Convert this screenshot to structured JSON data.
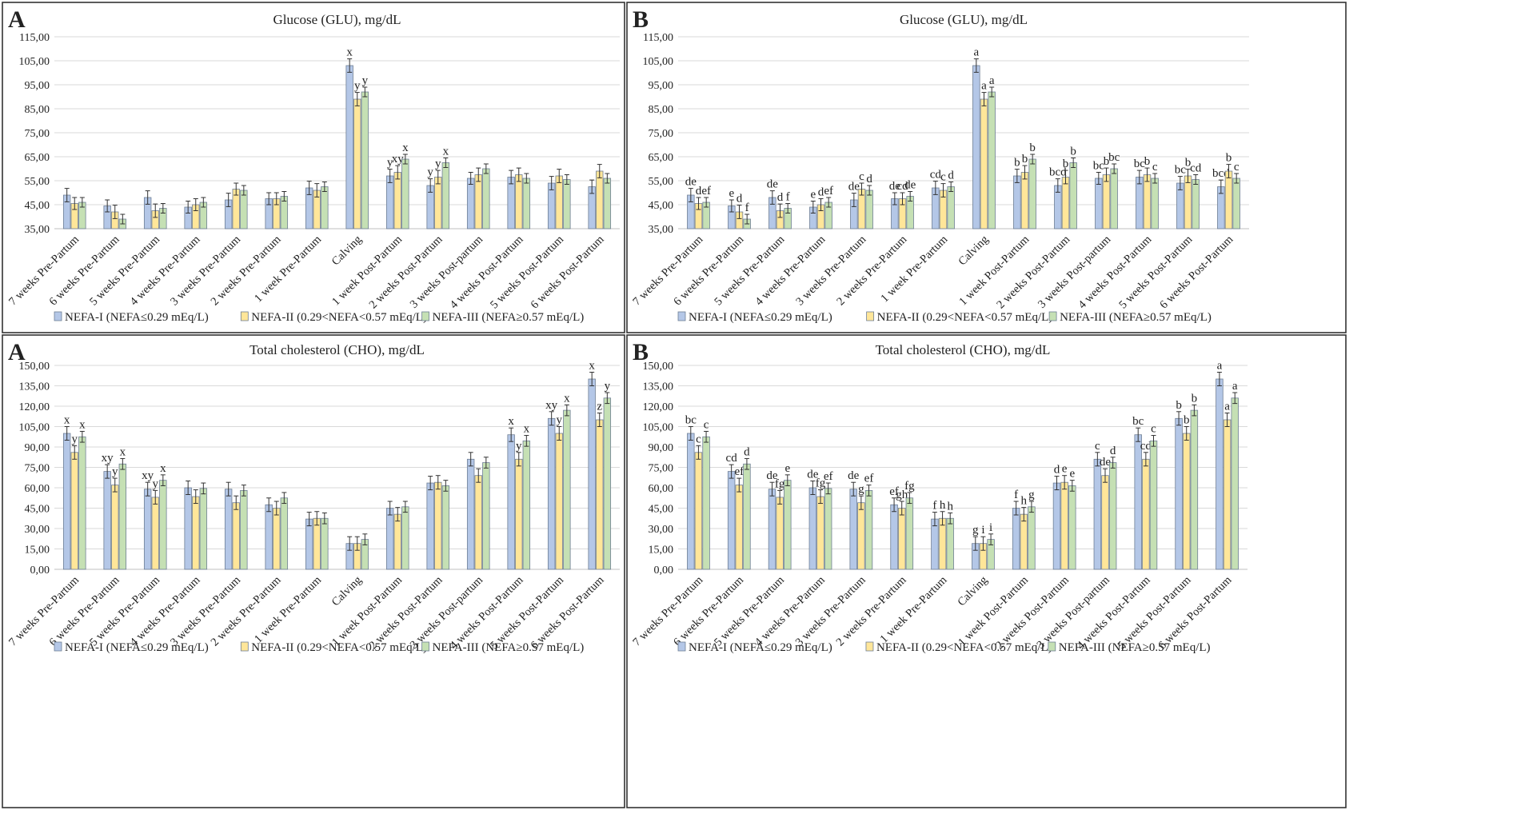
{
  "chart_data": [
    {
      "type": "bar",
      "panel_letter": "A",
      "title": "Glucose (GLU), mg/dL",
      "ylim": [
        35,
        115
      ],
      "yticks": [
        "35,00",
        "45,00",
        "55,00",
        "65,00",
        "75,00",
        "85,00",
        "95,00",
        "105,00",
        "115,00"
      ],
      "categories": [
        "7 weeks Pre-Partum",
        "6 weeks Pre-Partum",
        "5 weeks Pre-Partum",
        "4 weeks Pre-Partum",
        "3 weeks Pre-Partum",
        "2 weeks Pre-Partum",
        "1 week Pre-Partum",
        "Calving",
        "1 week Post-Partum",
        "2 weeks Post-Partum",
        "3 weeks Post-partum",
        "4 weeks Post-Partum",
        "5 weeks Post-Partum",
        "6 weeks Post-Partum"
      ],
      "series": [
        {
          "name": "NEFA-I (NEFA≤0.29 mEq/L)",
          "color": "#b4c7e7",
          "values": [
            49,
            44.5,
            48,
            44,
            47,
            47.5,
            52,
            103,
            57,
            53,
            56,
            56.5,
            54,
            52.5
          ],
          "errors": [
            2.8,
            2.5,
            2.8,
            2.5,
            2.8,
            2.5,
            2.8,
            2.8,
            2.8,
            2.8,
            2.5,
            2.8,
            2.8,
            2.8
          ],
          "labels": [
            "",
            "",
            "",
            "",
            "",
            "",
            "",
            "x",
            "y",
            "y",
            "",
            "",
            "",
            ""
          ]
        },
        {
          "name": "NEFA-II (0.29<NEFA<0.57 mEq/L)",
          "color": "#ffe699",
          "values": [
            45.5,
            42,
            42.5,
            45,
            51.5,
            47.5,
            51,
            89,
            58.5,
            56.5,
            57.5,
            57.5,
            57,
            59
          ],
          "errors": [
            2.5,
            2.8,
            2.8,
            2.5,
            2.5,
            2.5,
            2.8,
            2.8,
            2.8,
            2.8,
            2.8,
            2.8,
            2.8,
            2.8
          ],
          "labels": [
            "",
            "",
            "",
            "",
            "",
            "",
            "",
            "y",
            "xy",
            "y",
            "",
            "",
            "",
            ""
          ]
        },
        {
          "name": "NEFA-III (NEFA≥0.57 mEq/L)",
          "color": "#c5e0b4",
          "values": [
            46,
            39,
            43.5,
            46,
            51,
            48.5,
            52.5,
            92,
            64,
            62.5,
            60,
            56,
            55.5,
            56
          ],
          "errors": [
            2,
            2,
            2,
            2,
            2,
            2,
            2,
            2,
            2,
            2,
            2,
            2,
            2,
            2
          ],
          "labels": [
            "",
            "",
            "",
            "",
            "",
            "",
            "",
            "y",
            "x",
            "x",
            "",
            "",
            "",
            ""
          ]
        }
      ]
    },
    {
      "type": "bar",
      "panel_letter": "B",
      "title": "Glucose (GLU), mg/dL",
      "ylim": [
        35,
        115
      ],
      "yticks": [
        "35,00",
        "45,00",
        "55,00",
        "65,00",
        "75,00",
        "85,00",
        "95,00",
        "105,00",
        "115,00"
      ],
      "categories": [
        "7 weeks Pre-Partum",
        "6 weeks Pre-Partum",
        "5 weeks Pre-Partum",
        "4 weeks Pre-Partum",
        "3 weeks Pre-Partum",
        "2 weeks Pre-Partum",
        "1 week Pre-Partum",
        "Calving",
        "1 week Post-Partum",
        "2 weeks Post-Partum",
        "3 weeks Post-partum",
        "4 weeks Post-Partum",
        "5 weeks Post-Partum",
        "6 weeks Post-Partum"
      ],
      "series": [
        {
          "name": "NEFA-I (NEFA≤0.29 mEq/L)",
          "color": "#b4c7e7",
          "values": [
            49,
            44.5,
            48,
            44,
            47,
            47.5,
            52,
            103,
            57,
            53,
            56,
            56.5,
            54,
            52.5
          ],
          "errors": [
            2.8,
            2.5,
            2.8,
            2.5,
            2.8,
            2.5,
            2.8,
            2.8,
            2.8,
            2.8,
            2.5,
            2.8,
            2.8,
            2.8
          ],
          "labels": [
            "de",
            "e",
            "de",
            "e",
            "de",
            "de",
            "cd",
            "a",
            "b",
            "bcd",
            "bc",
            "bc",
            "bc",
            "bcd"
          ]
        },
        {
          "name": "NEFA-II (0.29<NEFA<0.57 mEq/L)",
          "color": "#ffe699",
          "values": [
            45.5,
            42,
            42.5,
            45,
            51.5,
            47.5,
            51,
            89,
            58.5,
            56.5,
            57.5,
            57.5,
            57,
            59
          ],
          "errors": [
            2.5,
            2.8,
            2.8,
            2.5,
            2.5,
            2.5,
            2.8,
            2.8,
            2.8,
            2.8,
            2.8,
            2.8,
            2.8,
            2.8
          ],
          "labels": [
            "d",
            "d",
            "d",
            "d",
            "c",
            "cd",
            "c",
            "a",
            "b",
            "b",
            "b",
            "b",
            "b",
            "b"
          ]
        },
        {
          "name": "NEFA-III (NEFA≥0.57 mEq/L)",
          "color": "#c5e0b4",
          "values": [
            46,
            39,
            43.5,
            46,
            51,
            48.5,
            52.5,
            92,
            64,
            62.5,
            60,
            56,
            55.5,
            56
          ],
          "errors": [
            2,
            2,
            2,
            2,
            2,
            2,
            2,
            2,
            2,
            2,
            2,
            2,
            2,
            2
          ],
          "labels": [
            "ef",
            "f",
            "f",
            "ef",
            "d",
            "de",
            "d",
            "a",
            "b",
            "b",
            "bc",
            "c",
            "cd",
            "c"
          ]
        }
      ]
    },
    {
      "type": "bar",
      "panel_letter": "A",
      "title": "Total cholesterol (CHO), mg/dL",
      "ylim": [
        0,
        150
      ],
      "yticks": [
        "0,00",
        "15,00",
        "30,00",
        "45,00",
        "60,00",
        "75,00",
        "90,00",
        "105,00",
        "120,00",
        "135,00",
        "150,00"
      ],
      "categories": [
        "7 weeks Pre-Partum",
        "6 weeks Pre-Partum",
        "5 weeks Pre-Partum",
        "4 weeks Pre-Partum",
        "3 weeks Pre-Partum",
        "2 weeks Pre-Partum",
        "1 week Pre-Partum",
        "Calving",
        "1 week Post-Partum",
        "2 weeks Post-Partum",
        "3 weeks Post-partum",
        "4 weeks Post-Partum",
        "5 weeks Post-Partum",
        "6 weeks Post-Partum"
      ],
      "series": [
        {
          "name": "NEFA-I (NEFA≤0.29 mEq/L)",
          "color": "#b4c7e7",
          "values": [
            100,
            72,
            59,
            60,
            59,
            47.5,
            37,
            19,
            45,
            63.5,
            81,
            99,
            111,
            140
          ],
          "errors": [
            5,
            5,
            5,
            5,
            5,
            5,
            5,
            5,
            5,
            5,
            5,
            5,
            5,
            5
          ],
          "labels": [
            "x",
            "xy",
            "xy",
            "",
            "",
            "",
            "",
            "",
            "",
            "",
            "",
            "x",
            "xy",
            "x"
          ]
        },
        {
          "name": "NEFA-II (0.29<NEFA<0.57 mEq/L)",
          "color": "#ffe699",
          "values": [
            86,
            62,
            53,
            53.5,
            49,
            45,
            37.5,
            19,
            40.5,
            64,
            69,
            81,
            100,
            110
          ],
          "errors": [
            5,
            5,
            5,
            5,
            5,
            5,
            5,
            5,
            5,
            5,
            5,
            5,
            5,
            5
          ],
          "labels": [
            "y",
            "y",
            "y",
            "",
            "",
            "",
            "",
            "",
            "",
            "",
            "",
            "y",
            "y",
            "z"
          ]
        },
        {
          "name": "NEFA-III (NEFA≥0.57 mEq/L)",
          "color": "#c5e0b4",
          "values": [
            97.5,
            77.5,
            65.5,
            59.5,
            58,
            52.5,
            37.5,
            22,
            46,
            61.5,
            78.5,
            94.5,
            117,
            126
          ],
          "errors": [
            4,
            4,
            4,
            4,
            4,
            4,
            4,
            4,
            4,
            4,
            4,
            4,
            4,
            4
          ],
          "labels": [
            "x",
            "x",
            "x",
            "",
            "",
            "",
            "",
            "",
            "",
            "",
            "",
            "x",
            "x",
            "y"
          ]
        }
      ]
    },
    {
      "type": "bar",
      "panel_letter": "B",
      "title": "Total cholesterol (CHO), mg/dL",
      "ylim": [
        0,
        150
      ],
      "yticks": [
        "0,00",
        "15,00",
        "30,00",
        "45,00",
        "60,00",
        "75,00",
        "90,00",
        "105,00",
        "120,00",
        "135,00",
        "150,00"
      ],
      "categories": [
        "7 weeks Pre-Partum",
        "6 weeks Pre-Partum",
        "5 weeks Pre-Partum",
        "4 weeks Pre-Partum",
        "3 weeks Pre-Partum",
        "2 weeks Pre-Partum",
        "1 week Pre-Partum",
        "Calving",
        "1 week Post-Partum",
        "2 weeks Post-Partum",
        "3 weeks Post-partum",
        "4 weeks Post-Partum",
        "5 weeks Post-Partum",
        "6 weeks Post-Partum"
      ],
      "series": [
        {
          "name": "NEFA-I (NEFA≤0.29 mEq/L)",
          "color": "#b4c7e7",
          "values": [
            100,
            72,
            59,
            60,
            59,
            47.5,
            37,
            19,
            45,
            63.5,
            81,
            99,
            111,
            140
          ],
          "errors": [
            5,
            5,
            5,
            5,
            5,
            5,
            5,
            5,
            5,
            5,
            5,
            5,
            5,
            5
          ],
          "labels": [
            "bc",
            "cd",
            "de",
            "de",
            "de",
            "ef",
            "f",
            "g",
            "f",
            "d",
            "c",
            "bc",
            "b",
            "a"
          ]
        },
        {
          "name": "NEFA-II (0.29<NEFA<0.57 mEq/L)",
          "color": "#ffe699",
          "values": [
            86,
            62,
            53,
            53.5,
            49,
            45,
            37.5,
            19,
            40.5,
            64,
            69,
            81,
            100,
            110
          ],
          "errors": [
            5,
            5,
            5,
            5,
            5,
            5,
            5,
            5,
            5,
            5,
            5,
            5,
            5,
            5
          ],
          "labels": [
            "c",
            "ef",
            "fg",
            "fg",
            "g",
            "gh",
            "h",
            "i",
            "h",
            "e",
            "de",
            "cd",
            "b",
            "a"
          ]
        },
        {
          "name": "NEFA-III (NEFA≥0.57 mEq/L)",
          "color": "#c5e0b4",
          "values": [
            97.5,
            77.5,
            65.5,
            59.5,
            58,
            52.5,
            37.5,
            22,
            46,
            61.5,
            78.5,
            94.5,
            117,
            126
          ],
          "errors": [
            4,
            4,
            4,
            4,
            4,
            4,
            4,
            4,
            4,
            4,
            4,
            4,
            4,
            4
          ],
          "labels": [
            "c",
            "d",
            "e",
            "ef",
            "ef",
            "fg",
            "h",
            "i",
            "g",
            "e",
            "d",
            "c",
            "b",
            "a"
          ]
        }
      ]
    }
  ]
}
